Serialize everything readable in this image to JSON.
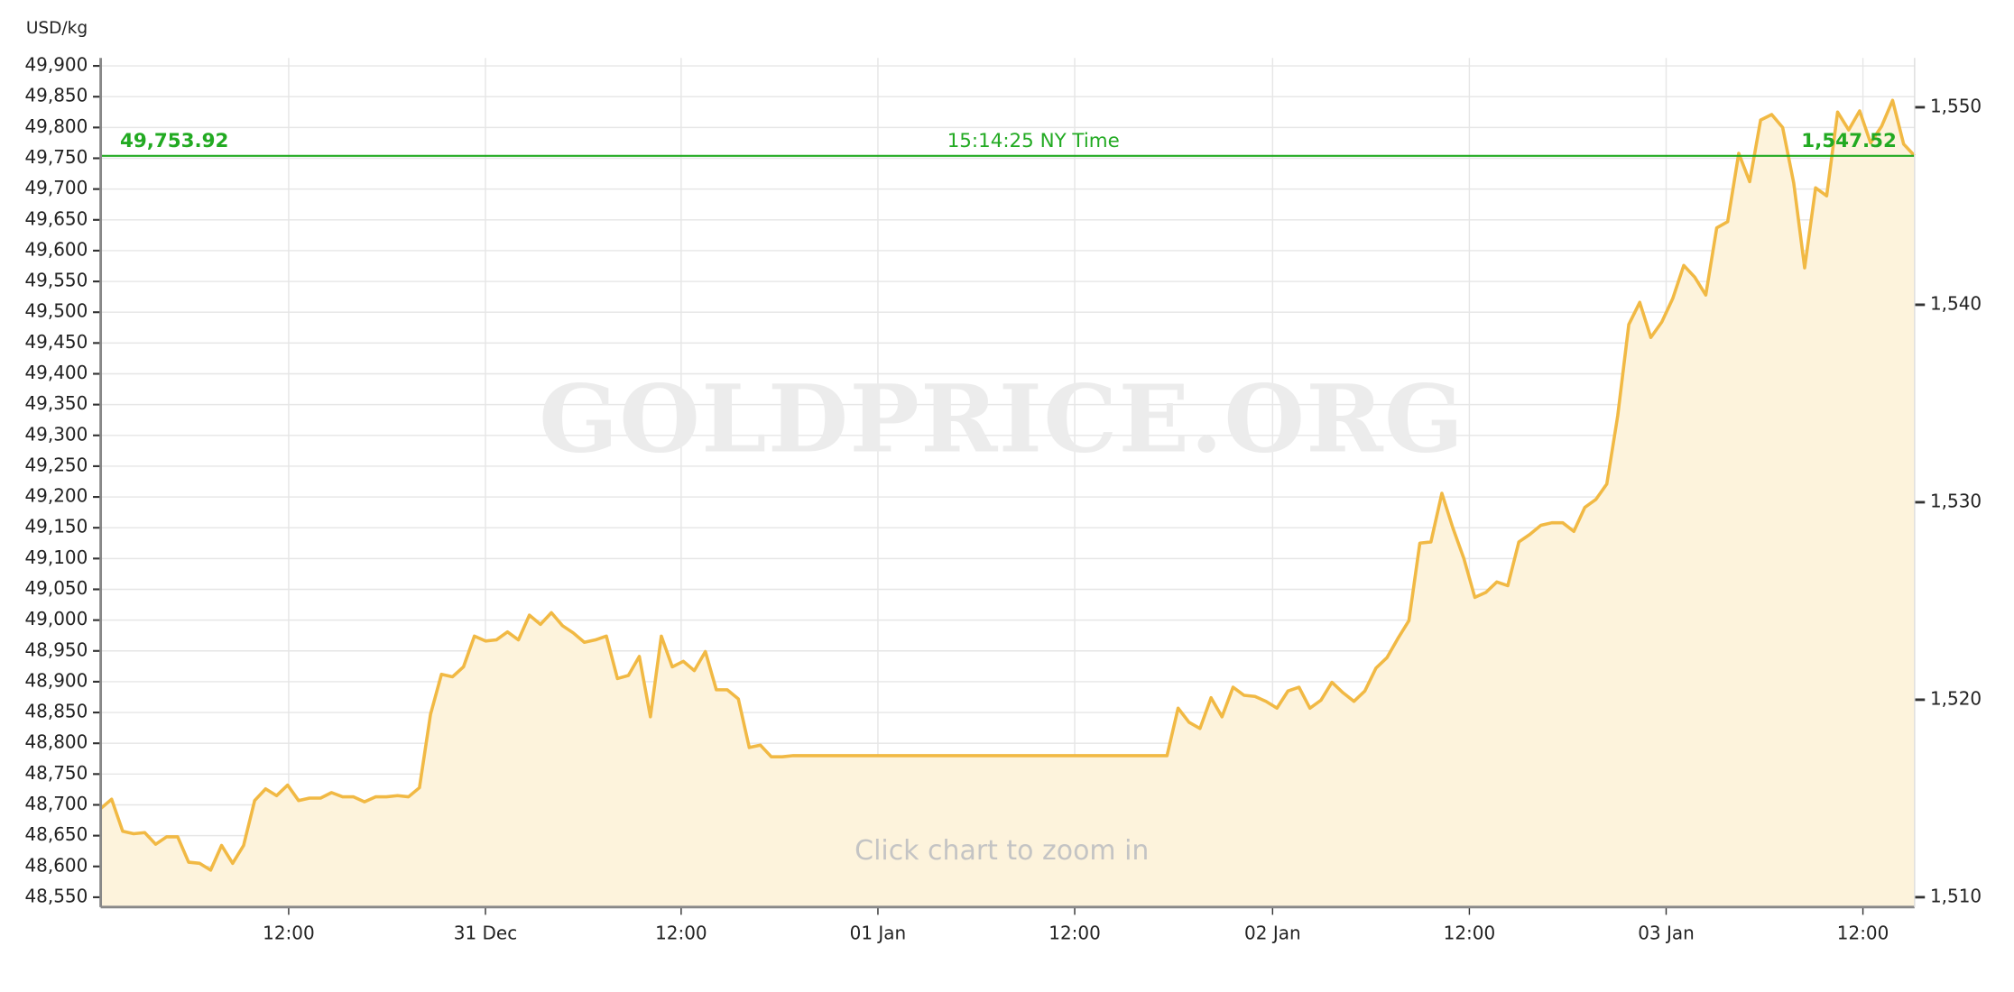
{
  "chart_data": {
    "type": "area",
    "y_axis_label": "USD/kg",
    "watermark": "GOLDPRICE.ORG",
    "note": "Click chart to zoom in",
    "color": "#f1b944",
    "fill_color": "#fdf3dc",
    "grid": true,
    "values": [
      48694,
      48709,
      48657,
      48653,
      48655,
      48636,
      48648,
      48648,
      48607,
      48605,
      48594,
      48634,
      48605,
      48634,
      48707,
      48726,
      48715,
      48732,
      48707,
      48711,
      48711,
      48720,
      48713,
      48713,
      48705,
      48713,
      48713,
      48715,
      48713,
      48728,
      48847,
      48912,
      48908,
      48924,
      48974,
      48966,
      48968,
      48981,
      48968,
      49008,
      48993,
      49012,
      48991,
      48979,
      48964,
      48968,
      48974,
      48905,
      48910,
      48941,
      48843,
      48974,
      48924,
      48933,
      48918,
      48949,
      48887,
      48887,
      48872,
      48793,
      48797,
      48778,
      48778,
      48780,
      48780,
      48780,
      48780,
      48780,
      48780,
      48780,
      48780,
      48780,
      48780,
      48780,
      48780,
      48780,
      48780,
      48780,
      48780,
      48780,
      48780,
      48780,
      48780,
      48780,
      48780,
      48780,
      48780,
      48780,
      48780,
      48780,
      48780,
      48780,
      48780,
      48780,
      48780,
      48780,
      48780,
      48780,
      48857,
      48834,
      48824,
      48874,
      48843,
      48891,
      48878,
      48876,
      48868,
      48857,
      48885,
      48891,
      48857,
      48870,
      48899,
      48882,
      48868,
      48885,
      48922,
      48939,
      48970,
      48999,
      49125,
      49127,
      49206,
      49150,
      49100,
      49037,
      49045,
      49062,
      49056,
      49127,
      49139,
      49154,
      49158,
      49158,
      49144,
      49183,
      49196,
      49221,
      49332,
      49480,
      49516,
      49459,
      49484,
      49522,
      49576,
      49557,
      49528,
      49637,
      49647,
      49758,
      49712,
      49812,
      49821,
      49800,
      49710,
      49572,
      49702,
      49689,
      49825,
      49796,
      49827,
      49775,
      49802,
      49844,
      49773,
      49754
    ],
    "xlim": [
      0,
      165
    ],
    "xticks": [
      {
        "value": 17.1,
        "label": "12:00"
      },
      {
        "value": 35.0,
        "label": "31 Dec"
      },
      {
        "value": 52.8,
        "label": "12:00"
      },
      {
        "value": 70.7,
        "label": "01 Jan"
      },
      {
        "value": 88.6,
        "label": "12:00"
      },
      {
        "value": 106.6,
        "label": "02 Jan"
      },
      {
        "value": 124.5,
        "label": "12:00"
      },
      {
        "value": 142.4,
        "label": "03 Jan"
      },
      {
        "value": 160.3,
        "label": "12:00"
      }
    ],
    "ylim": [
      48534,
      49913
    ],
    "yticks": [
      {
        "value": 48550,
        "label": "48,550"
      },
      {
        "value": 48600,
        "label": "48,600"
      },
      {
        "value": 48650,
        "label": "48,650"
      },
      {
        "value": 48700,
        "label": "48,700"
      },
      {
        "value": 48750,
        "label": "48,750"
      },
      {
        "value": 48800,
        "label": "48,800"
      },
      {
        "value": 48850,
        "label": "48,850"
      },
      {
        "value": 48900,
        "label": "48,900"
      },
      {
        "value": 48950,
        "label": "48,950"
      },
      {
        "value": 49000,
        "label": "49,000"
      },
      {
        "value": 49050,
        "label": "49,050"
      },
      {
        "value": 49100,
        "label": "49,100"
      },
      {
        "value": 49150,
        "label": "49,150"
      },
      {
        "value": 49200,
        "label": "49,200"
      },
      {
        "value": 49250,
        "label": "49,250"
      },
      {
        "value": 49300,
        "label": "49,300"
      },
      {
        "value": 49350,
        "label": "49,350"
      },
      {
        "value": 49400,
        "label": "49,400"
      },
      {
        "value": 49450,
        "label": "49,450"
      },
      {
        "value": 49500,
        "label": "49,500"
      },
      {
        "value": 49550,
        "label": "49,550"
      },
      {
        "value": 49600,
        "label": "49,600"
      },
      {
        "value": 49650,
        "label": "49,650"
      },
      {
        "value": 49700,
        "label": "49,700"
      },
      {
        "value": 49750,
        "label": "49,750"
      },
      {
        "value": 49800,
        "label": "49,800"
      },
      {
        "value": 49850,
        "label": "49,850"
      },
      {
        "value": 49900,
        "label": "49,900"
      }
    ],
    "y2lim": [
      1509.5,
      1552.5
    ],
    "y2ticks": [
      {
        "value": 1510,
        "label": "1,510"
      },
      {
        "value": 1520,
        "label": "1,520"
      },
      {
        "value": 1530,
        "label": "1,530"
      },
      {
        "value": 1540,
        "label": "1,540"
      },
      {
        "value": 1550,
        "label": "1,550"
      }
    ],
    "current_line": {
      "value": 49753.92,
      "label": "49,753.92",
      "right_value": 1547.52,
      "right_label": "1,547.52",
      "time": "15:14:25 NY Time",
      "color": "#22aa22"
    }
  }
}
